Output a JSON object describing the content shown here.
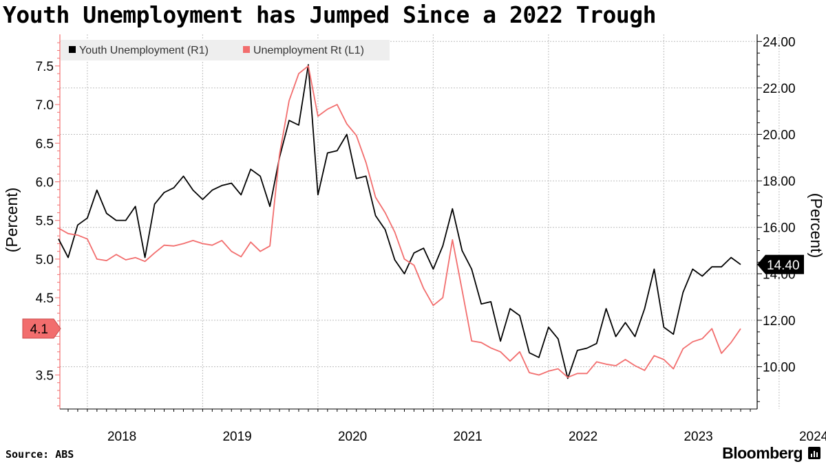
{
  "title": "Youth Unemployment has Jumped Since a 2022 Trough",
  "source": "Source: ABS",
  "brand": "Bloomberg",
  "chart_data": {
    "type": "line",
    "title": "Youth Unemployment has Jumped Since a 2022 Trough",
    "left_axis": {
      "label": "(Percent)",
      "ticks": [
        "3.5",
        "4.5",
        "5.0",
        "5.5",
        "6.0",
        "6.5",
        "7.0",
        "7.5"
      ],
      "range": [
        3.0,
        7.8
      ]
    },
    "right_axis": {
      "label": "(Percent)",
      "ticks": [
        "10.00",
        "12.00",
        "14.00",
        "16.00",
        "18.00",
        "20.00",
        "22.00",
        "24.00"
      ],
      "range": [
        8.0,
        24.2
      ]
    },
    "x_axis": {
      "ticks": [
        "2018",
        "2019",
        "2020",
        "2021",
        "2022",
        "2023",
        "2024"
      ]
    },
    "legend": {
      "placement": "top-left",
      "items": [
        "Youth Unemployment (R1)",
        "Unemployment Rt (L1)"
      ]
    },
    "grid": true,
    "colors": {
      "youth": "#000000",
      "unemployment": "#f26d6d"
    },
    "last_value_labels": {
      "left": "4.1",
      "right": "14.40"
    },
    "series": [
      {
        "name": "Youth Unemployment (R1)",
        "axis": "right",
        "color": "#000000",
        "start": "2017-09",
        "values": [
          15.5,
          14.7,
          16.1,
          16.4,
          17.6,
          16.6,
          16.3,
          16.3,
          16.9,
          14.7,
          17.0,
          17.5,
          17.7,
          18.2,
          17.6,
          17.2,
          17.6,
          17.8,
          17.9,
          17.4,
          18.5,
          18.2,
          16.9,
          19.0,
          20.6,
          20.4,
          23.0,
          17.4,
          19.2,
          19.3,
          20.0,
          18.1,
          18.2,
          16.5,
          15.9,
          14.6,
          14.0,
          14.9,
          15.1,
          14.2,
          15.2,
          16.8,
          15.0,
          14.2,
          12.7,
          12.8,
          11.1,
          12.5,
          12.2,
          10.6,
          10.4,
          11.7,
          11.2,
          9.5,
          10.7,
          10.8,
          11.0,
          12.5,
          11.3,
          11.9,
          11.3,
          12.5,
          14.2,
          11.7,
          11.4,
          13.2,
          14.2,
          13.9,
          14.3,
          14.3,
          14.7,
          14.4
        ]
      },
      {
        "name": "Unemployment Rt (L1)",
        "axis": "left",
        "color": "#f26d6d",
        "start": "2017-09",
        "values": [
          5.4,
          5.33,
          5.31,
          5.26,
          5.0,
          4.98,
          5.06,
          4.99,
          5.02,
          4.97,
          5.08,
          5.18,
          5.17,
          5.2,
          5.24,
          5.2,
          5.18,
          5.24,
          5.1,
          5.03,
          5.22,
          5.1,
          5.17,
          6.35,
          7.05,
          7.4,
          7.5,
          6.85,
          6.94,
          7.0,
          6.75,
          6.6,
          6.25,
          5.8,
          5.6,
          5.35,
          5.0,
          4.92,
          4.62,
          4.4,
          4.5,
          5.25,
          4.6,
          3.94,
          3.92,
          3.85,
          3.8,
          3.68,
          3.8,
          3.53,
          3.5,
          3.55,
          3.58,
          3.47,
          3.52,
          3.52,
          3.67,
          3.64,
          3.62,
          3.7,
          3.62,
          3.56,
          3.75,
          3.7,
          3.58,
          3.84,
          3.93,
          3.97,
          4.1,
          3.78,
          3.92,
          4.1
        ]
      }
    ]
  }
}
